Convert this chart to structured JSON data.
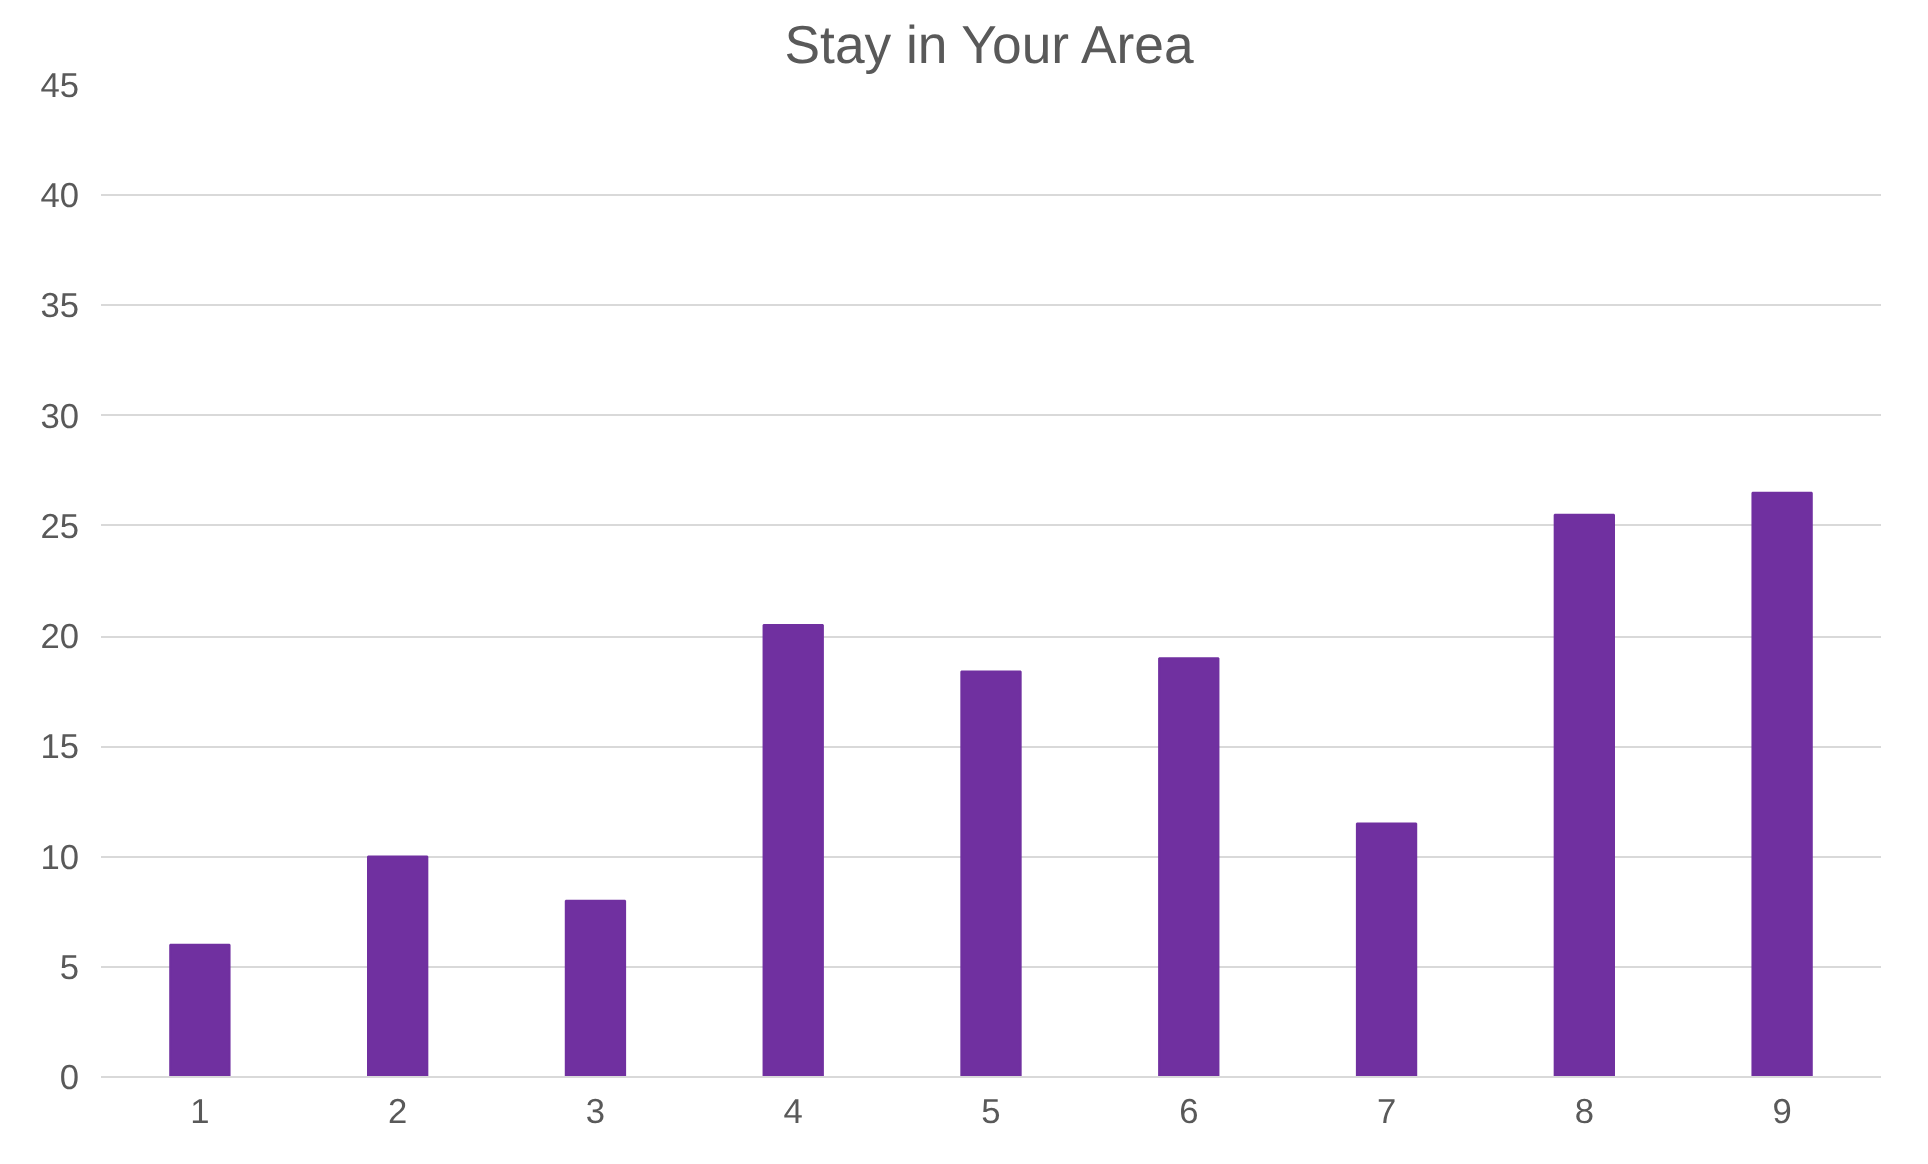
{
  "chart_data": {
    "type": "bar",
    "title": "Stay in Your Area",
    "categories": [
      "1",
      "2",
      "3",
      "4",
      "5",
      "6",
      "7",
      "8",
      "9"
    ],
    "values": [
      6,
      10,
      8,
      20.5,
      18.4,
      19,
      11.5,
      25.5,
      26.5
    ],
    "color": "#7030a0",
    "ylim": [
      0,
      45
    ],
    "yticks": [
      0,
      5,
      10,
      15,
      20,
      25,
      30,
      35,
      40,
      45
    ],
    "grid": "y"
  }
}
